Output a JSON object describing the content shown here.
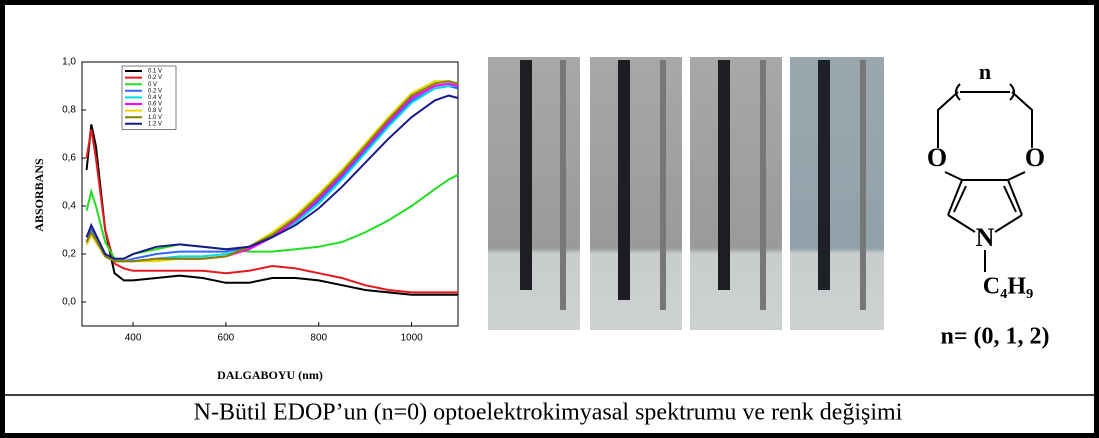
{
  "chart_data": {
    "type": "line",
    "x_label": "DALGABOYU (nm)",
    "y_label": "ABSORBANS",
    "x": [
      300,
      310,
      320,
      340,
      360,
      380,
      400,
      450,
      500,
      550,
      600,
      650,
      700,
      750,
      800,
      850,
      900,
      950,
      1000,
      1050,
      1080,
      1100
    ],
    "xlim": [
      290,
      1100
    ],
    "xticks": [
      400,
      600,
      800,
      1000
    ],
    "ylim": [
      -0.1,
      1.0
    ],
    "yticks": [
      {
        "value": 0,
        "label": "0,0"
      },
      {
        "value": 0.2,
        "label": "0,2"
      },
      {
        "value": 0.4,
        "label": "0,4"
      },
      {
        "value": 0.6,
        "label": "0,6"
      },
      {
        "value": 0.8,
        "label": "0,8"
      },
      {
        "value": 1.0,
        "label": "1,0"
      }
    ],
    "grid": false,
    "legend": "upper-left",
    "series": [
      {
        "name": "0.1 V",
        "color": "#000000",
        "values": [
          0.55,
          0.74,
          0.65,
          0.3,
          0.12,
          0.09,
          0.09,
          0.1,
          0.11,
          0.1,
          0.08,
          0.08,
          0.1,
          0.1,
          0.09,
          0.07,
          0.05,
          0.04,
          0.03,
          0.03,
          0.03,
          0.03
        ]
      },
      {
        "name": "0.2 V",
        "color": "#e41a1c",
        "values": [
          0.6,
          0.72,
          0.6,
          0.3,
          0.16,
          0.14,
          0.13,
          0.13,
          0.13,
          0.13,
          0.12,
          0.13,
          0.15,
          0.14,
          0.12,
          0.1,
          0.07,
          0.05,
          0.04,
          0.04,
          0.04,
          0.04
        ]
      },
      {
        "name": "0 V",
        "color": "#22dd22",
        "values": [
          0.38,
          0.46,
          0.4,
          0.25,
          0.18,
          0.18,
          0.2,
          0.22,
          0.24,
          0.23,
          0.22,
          0.21,
          0.21,
          0.22,
          0.23,
          0.25,
          0.29,
          0.34,
          0.4,
          0.47,
          0.51,
          0.53
        ]
      },
      {
        "name": "0.2 V",
        "color": "#3366ff",
        "values": [
          0.25,
          0.3,
          0.27,
          0.2,
          0.17,
          0.17,
          0.18,
          0.2,
          0.21,
          0.21,
          0.21,
          0.23,
          0.28,
          0.34,
          0.42,
          0.52,
          0.63,
          0.74,
          0.84,
          0.89,
          0.9,
          0.89
        ]
      },
      {
        "name": "0.4 V",
        "color": "#00dddd",
        "values": [
          0.24,
          0.29,
          0.26,
          0.2,
          0.17,
          0.17,
          0.17,
          0.18,
          0.19,
          0.19,
          0.2,
          0.22,
          0.27,
          0.33,
          0.41,
          0.51,
          0.62,
          0.73,
          0.83,
          0.89,
          0.9,
          0.9
        ]
      },
      {
        "name": "0.6 V",
        "color": "#ff00ff",
        "values": [
          0.24,
          0.28,
          0.25,
          0.19,
          0.17,
          0.17,
          0.17,
          0.18,
          0.18,
          0.18,
          0.19,
          0.22,
          0.27,
          0.34,
          0.43,
          0.53,
          0.64,
          0.75,
          0.85,
          0.9,
          0.91,
          0.9
        ]
      },
      {
        "name": "0.8 V",
        "color": "#e6d800",
        "values": [
          0.24,
          0.28,
          0.25,
          0.19,
          0.17,
          0.17,
          0.17,
          0.17,
          0.18,
          0.18,
          0.19,
          0.23,
          0.29,
          0.36,
          0.45,
          0.55,
          0.66,
          0.77,
          0.87,
          0.92,
          0.92,
          0.91
        ]
      },
      {
        "name": "1.0 V",
        "color": "#808000",
        "values": [
          0.25,
          0.29,
          0.26,
          0.19,
          0.17,
          0.17,
          0.17,
          0.18,
          0.18,
          0.18,
          0.19,
          0.23,
          0.28,
          0.35,
          0.44,
          0.54,
          0.65,
          0.76,
          0.86,
          0.91,
          0.92,
          0.91
        ]
      },
      {
        "name": "1.2 V",
        "color": "#1a1a8c",
        "values": [
          0.27,
          0.32,
          0.28,
          0.2,
          0.18,
          0.18,
          0.2,
          0.23,
          0.24,
          0.23,
          0.22,
          0.23,
          0.27,
          0.32,
          0.39,
          0.48,
          0.58,
          0.68,
          0.77,
          0.84,
          0.86,
          0.85
        ]
      }
    ]
  },
  "structure": {
    "atoms": [
      "O",
      "O",
      "N"
    ],
    "repeat": "n",
    "substituent": "C₄H₉",
    "n_values": "n= (0, 1, 2)"
  },
  "caption": "N-Bütil EDOP’un (n=0) optoelektrokimyasal spektrumu ve renk değişimi"
}
